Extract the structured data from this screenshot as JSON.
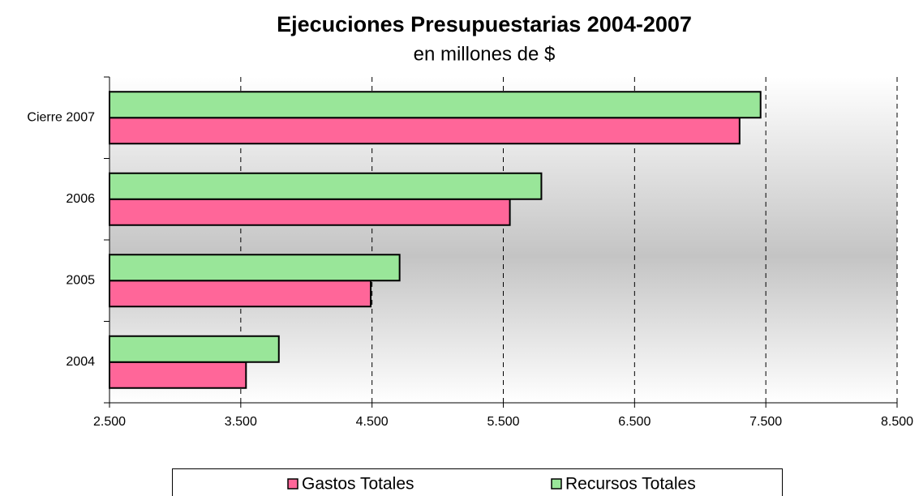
{
  "chart_data": {
    "type": "hbar",
    "title": "Ejecuciones Presupuestarias 2004-2007",
    "subtitle": "en millones de $",
    "categories": [
      "2004",
      "2005",
      "2006",
      "Cierre 2007"
    ],
    "series": [
      {
        "name": "Gastos Totales",
        "color": "#ff6699",
        "values": [
          3540,
          4490,
          5550,
          7300
        ]
      },
      {
        "name": "Recursos Totales",
        "color": "#99e699",
        "values": [
          3790,
          4710,
          5790,
          7460
        ]
      }
    ],
    "xlim": [
      2500,
      8500
    ],
    "xticks": [
      {
        "value": 2500,
        "label": "2.500"
      },
      {
        "value": 3500,
        "label": "3.500"
      },
      {
        "value": 4500,
        "label": "4.500"
      },
      {
        "value": 5500,
        "label": "5.500"
      },
      {
        "value": 6500,
        "label": "6.500"
      },
      {
        "value": 7500,
        "label": "7.500"
      },
      {
        "value": 8500,
        "label": "8.500"
      }
    ],
    "grid": true,
    "legend": "bottom"
  }
}
